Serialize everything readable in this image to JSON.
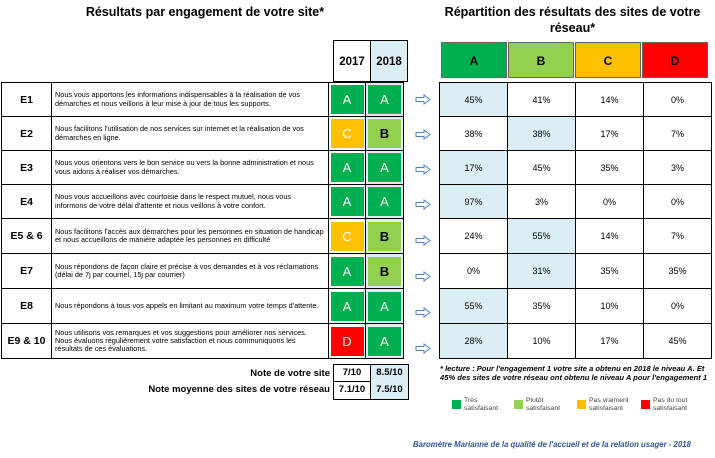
{
  "titles": {
    "left": "Résultats par engagement de votre site*",
    "right_line1": "Répartition des résultats des sites de votre",
    "right_line2": "réseau*"
  },
  "years": [
    "2017",
    "2018"
  ],
  "grade_headers": [
    "A",
    "B",
    "C",
    "D"
  ],
  "colors": {
    "A": "#00b050",
    "B": "#92d050",
    "C": "#ffc000",
    "D": "#ff0000",
    "highlight": "#dbeef4",
    "credit": "#2f5597"
  },
  "rows": [
    {
      "code": "E1",
      "text": "Nous vous apportons les informations indispensables à la réalisation de vos démarches et nous veillons à leur mise à jour de tous les supports.",
      "g2017": "A",
      "g2018": "A",
      "dist": [
        "45%",
        "41%",
        "14%",
        "0%"
      ],
      "highlight": 0
    },
    {
      "code": "E2",
      "text": "Nous facilitons l'utilisation de nos services sur internet et la réalisation de vos démarches en ligne.",
      "g2017": "C",
      "g2018": "B",
      "dist": [
        "38%",
        "38%",
        "17%",
        "7%"
      ],
      "highlight": 1
    },
    {
      "code": "E3",
      "text": "Nous vous orientons vers le bon service ou vers la bonne administration et nous vous aidons à réaliser vos démarches.",
      "g2017": "A",
      "g2018": "A",
      "dist": [
        "17%",
        "45%",
        "35%",
        "3%"
      ],
      "highlight": 0
    },
    {
      "code": "E4",
      "text": "Nous vous accueillons avec courtoisie dans le respect mutuel, nous vous informons de votre délai d'attente et nous veillons à votre confort.",
      "g2017": "A",
      "g2018": "A",
      "dist": [
        "97%",
        "3%",
        "0%",
        "0%"
      ],
      "highlight": 0
    },
    {
      "code": "E5 & 6",
      "text": "Nous facilitons l'accès aux démarches pour les personnes en situation de handicap et nous accueillons de manière adaptée les personnes en difficulté",
      "g2017": "C",
      "g2018": "B",
      "dist": [
        "24%",
        "55%",
        "14%",
        "7%"
      ],
      "highlight": 1
    },
    {
      "code": "E7",
      "text": "Nous répondons de façon claire et précise à vos demandes et à vos réclamations (délai de 7j par courriel, 15j par courrier)",
      "g2017": "A",
      "g2018": "B",
      "dist": [
        "0%",
        "31%",
        "35%",
        "35%"
      ],
      "highlight": 1
    },
    {
      "code": "E8",
      "text": "Nous répondons à tous vos appels en limitant au maximum votre temps d'attente.",
      "g2017": "A",
      "g2018": "A",
      "dist": [
        "55%",
        "35%",
        "10%",
        "0%"
      ],
      "highlight": 0
    },
    {
      "code": "E9 & 10",
      "text": "Nous utilisons vos remarques et vos suggestions pour améliorer nos services. Nous évaluons régulièrement votre satisfaction et nous communiquons les résultats de ces évaluations.",
      "g2017": "D",
      "g2018": "A",
      "dist": [
        "28%",
        "10%",
        "17%",
        "45%"
      ],
      "highlight": 0
    }
  ],
  "score_site": {
    "label": "Note de votre site",
    "v2017": "7/10",
    "v2018": "8.5/10"
  },
  "score_network": {
    "label": "Note moyenne des sites de votre réseau",
    "v2017": "7.1/10",
    "v2018": "7.5/10"
  },
  "footnote": "* lecture : Pour l'engagement 1 votre site a obtenu en 2018 le niveau A. Et 45% des sites de votre réseau ont obtenu le niveau A pour l'engagement 1",
  "legend": [
    {
      "grade": "A",
      "label1": "Très",
      "label2": "satisfaisant"
    },
    {
      "grade": "B",
      "label1": "Plutôt",
      "label2": "satisfaisant"
    },
    {
      "grade": "C",
      "label1": "Pas vraiment",
      "label2": "satisfaisant"
    },
    {
      "grade": "D",
      "label1": "Pas du tout",
      "label2": "satisfaisant"
    }
  ],
  "credit": "Baromètre Marianne de la qualité de l'accueil et de la relation usager - 2018"
}
